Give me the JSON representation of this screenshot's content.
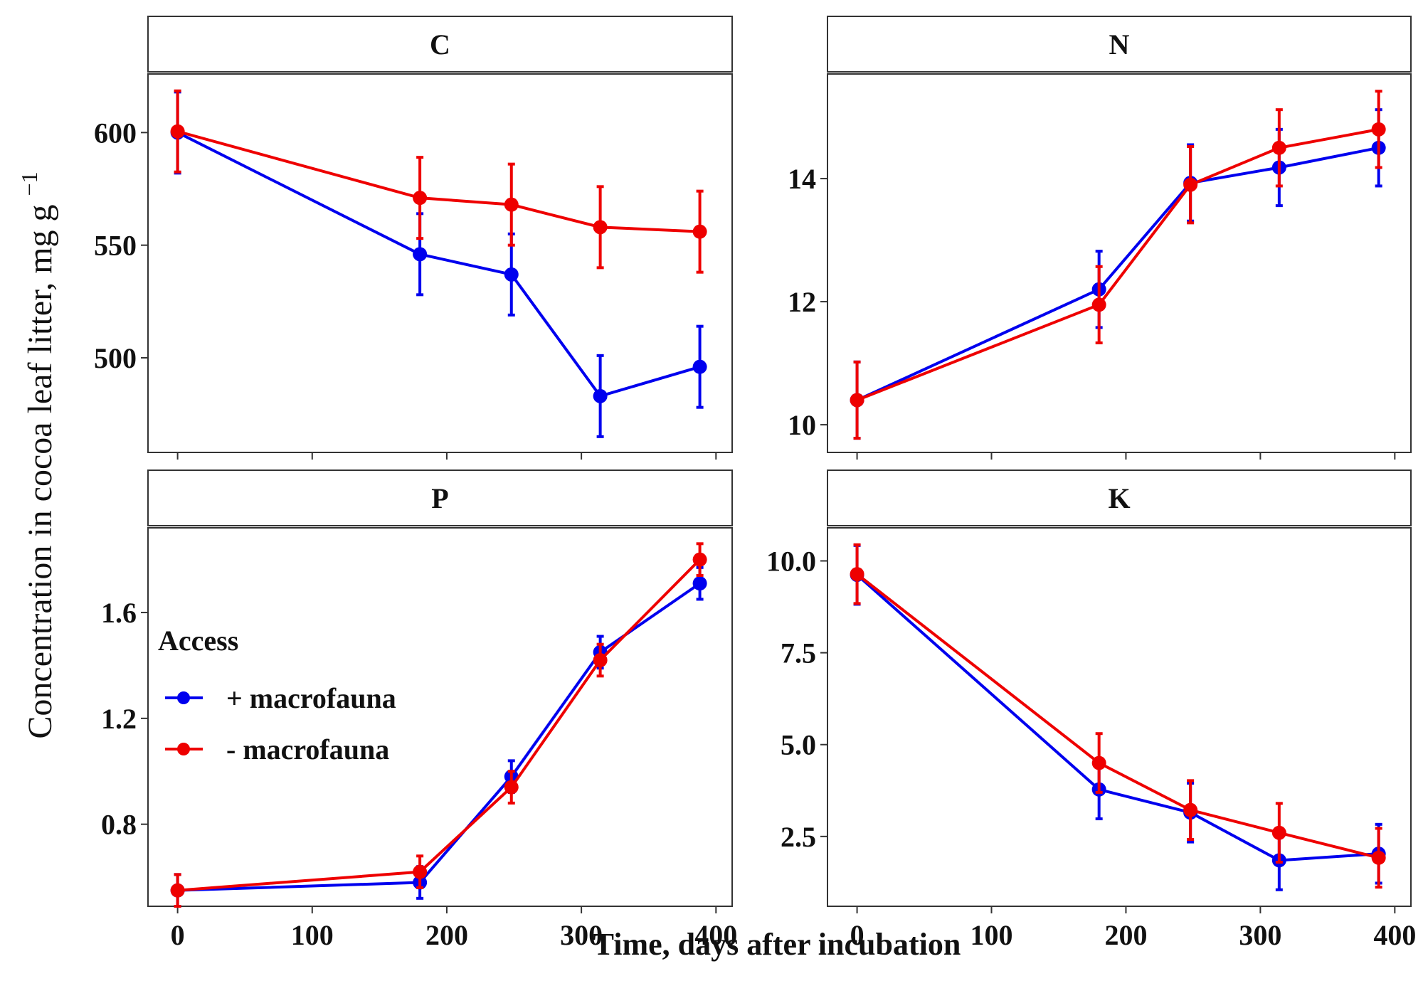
{
  "chart_data": {
    "type": "line",
    "xlabel": "Time, days after incubation",
    "ylabel": "Concentration in cocoa leaf litter, mg g",
    "ylabel_sup": "−1",
    "grid": false,
    "legend": {
      "title": "Access",
      "placement": "left, inside panel P",
      "entries": [
        {
          "label": "+ macrofauna",
          "color": "#0000ee"
        },
        {
          "label": "- macrofauna",
          "color": "#ee0000"
        }
      ]
    },
    "x": [
      0,
      180,
      248,
      314,
      388
    ],
    "panels": [
      {
        "title": "C",
        "xlim": [
          -22,
          412
        ],
        "ylim": [
          458,
          626
        ],
        "xticks": [
          0,
          100,
          200,
          300,
          400
        ],
        "yticks": [
          500,
          550,
          600
        ],
        "ytick_labels": [
          "500",
          "550",
          "600"
        ],
        "show_xticks": false,
        "series": [
          {
            "name": "+ macrofauna",
            "color": "#0000ee",
            "values": [
              600,
              546,
              537,
              483,
              496
            ],
            "err": [
              18,
              18,
              18,
              18,
              18
            ]
          },
          {
            "name": "- macrofauna",
            "color": "#ee0000",
            "values": [
              600.5,
              571,
              568,
              558,
              556
            ],
            "err": [
              18,
              18,
              18,
              18,
              18
            ]
          }
        ]
      },
      {
        "title": "N",
        "xlim": [
          -22,
          412
        ],
        "ylim": [
          9.55,
          15.7
        ],
        "xticks": [
          0,
          100,
          200,
          300,
          400
        ],
        "yticks": [
          10,
          12,
          14
        ],
        "ytick_labels": [
          "10",
          "12",
          "14"
        ],
        "show_xticks": false,
        "series": [
          {
            "name": "+ macrofauna",
            "color": "#0000ee",
            "values": [
              10.4,
              12.2,
              13.93,
              14.18,
              14.5
            ],
            "err": [
              0.62,
              0.62,
              0.62,
              0.62,
              0.62
            ]
          },
          {
            "name": "- macrofauna",
            "color": "#ee0000",
            "values": [
              10.4,
              11.95,
              13.9,
              14.5,
              14.8
            ],
            "err": [
              0.62,
              0.62,
              0.62,
              0.62,
              0.62
            ]
          }
        ]
      },
      {
        "title": "P",
        "xlim": [
          -22,
          412
        ],
        "ylim": [
          0.49,
          1.92
        ],
        "xticks": [
          0,
          100,
          200,
          300,
          400
        ],
        "xtick_labels": [
          "0",
          "100",
          "200",
          "300",
          "400"
        ],
        "yticks": [
          0.8,
          1.2,
          1.6
        ],
        "ytick_labels": [
          "0.8",
          "1.2",
          "1.6"
        ],
        "show_xticks": true,
        "series": [
          {
            "name": "+ macrofauna",
            "color": "#0000ee",
            "values": [
              0.55,
              0.58,
              0.98,
              1.45,
              1.71
            ],
            "err": [
              0.06,
              0.06,
              0.06,
              0.06,
              0.06
            ]
          },
          {
            "name": "- macrofauna",
            "color": "#ee0000",
            "values": [
              0.55,
              0.62,
              0.94,
              1.42,
              1.8
            ],
            "err": [
              0.06,
              0.06,
              0.06,
              0.06,
              0.06
            ]
          }
        ]
      },
      {
        "title": "K",
        "xlim": [
          -22,
          412
        ],
        "ylim": [
          0.6,
          10.9
        ],
        "xticks": [
          0,
          100,
          200,
          300,
          400
        ],
        "xtick_labels": [
          "0",
          "100",
          "200",
          "300",
          "400"
        ],
        "yticks": [
          2.5,
          5.0,
          7.5,
          10.0
        ],
        "ytick_labels": [
          "2.5",
          "5.0",
          "7.5",
          "10.0"
        ],
        "show_xticks": true,
        "series": [
          {
            "name": "+ macrofauna",
            "color": "#0000ee",
            "values": [
              9.62,
              3.78,
              3.15,
              1.85,
              2.03
            ],
            "err": [
              0.8,
              0.8,
              0.8,
              0.8,
              0.8
            ]
          },
          {
            "name": "- macrofauna",
            "color": "#ee0000",
            "values": [
              9.64,
              4.5,
              3.22,
              2.6,
              1.92
            ],
            "err": [
              0.8,
              0.8,
              0.8,
              0.8,
              0.8
            ]
          }
        ]
      }
    ]
  }
}
